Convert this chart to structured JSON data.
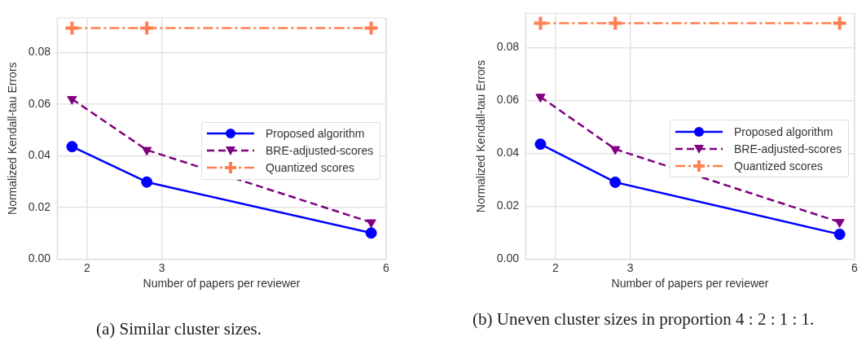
{
  "chart_data": [
    {
      "type": "line",
      "xlabel": "Number of papers per reviewer",
      "ylabel": "Normalized Kendall-tau Errors",
      "annotations": [
        "(a) Similar cluster sizes."
      ],
      "xlim": [
        1.6,
        6
      ],
      "xticks": [
        2,
        3,
        6
      ],
      "ylim": [
        0,
        0.0933
      ],
      "yticks": [
        {
          "value": 0,
          "label": "0.00"
        },
        {
          "value": 0.02,
          "label": "0.02"
        },
        {
          "value": 0.04,
          "label": "0.04"
        },
        {
          "value": 0.06,
          "label": "0.06"
        },
        {
          "value": 0.08,
          "label": "0.08"
        }
      ],
      "grid": true,
      "legend": "right",
      "x": [
        1.8,
        2.8,
        5.8
      ],
      "series": [
        {
          "name": "Proposed algorithm",
          "color": "#0000ff",
          "marker": "circle",
          "line_style": "solid",
          "values": [
            0.0435,
            0.0298,
            0.0101
          ]
        },
        {
          "name": "BRE-adjusted-scores",
          "color": "#800080",
          "marker": "triangle",
          "line_style": "dashed",
          "values": [
            0.0619,
            0.0422,
            0.0142
          ]
        },
        {
          "name": "Quantized scores",
          "color": "#ff7f50",
          "marker": "cross",
          "line_style": "dashdot",
          "values": [
            0.0894,
            0.0894,
            0.0894
          ]
        }
      ]
    },
    {
      "type": "line",
      "xlabel": "Number of papers per reviewer",
      "ylabel": "Normalized Kendall-tau Errors",
      "annotations": [
        "(b) Uneven cluster sizes in proportion 4 : 2 : 1 : 1."
      ],
      "xlim": [
        1.6,
        6
      ],
      "xticks": [
        2,
        3,
        6
      ],
      "ylim": [
        0,
        0.093
      ],
      "yticks": [
        {
          "value": 0,
          "label": "0.00"
        },
        {
          "value": 0.02,
          "label": "0.02"
        },
        {
          "value": 0.04,
          "label": "0.04"
        },
        {
          "value": 0.06,
          "label": "0.06"
        },
        {
          "value": 0.08,
          "label": "0.08"
        }
      ],
      "grid": true,
      "legend": "right",
      "x": [
        1.8,
        2.8,
        5.8
      ],
      "series": [
        {
          "name": "Proposed algorithm",
          "color": "#0000ff",
          "marker": "circle",
          "line_style": "solid",
          "values": [
            0.0435,
            0.0291,
            0.0094
          ]
        },
        {
          "name": "BRE-adjusted-scores",
          "color": "#800080",
          "marker": "triangle",
          "line_style": "dashed",
          "values": [
            0.0614,
            0.0416,
            0.014
          ]
        },
        {
          "name": "Quantized scores",
          "color": "#ff7f50",
          "marker": "cross",
          "line_style": "dashdot",
          "values": [
            0.0893,
            0.0893,
            0.0893
          ]
        }
      ]
    }
  ]
}
